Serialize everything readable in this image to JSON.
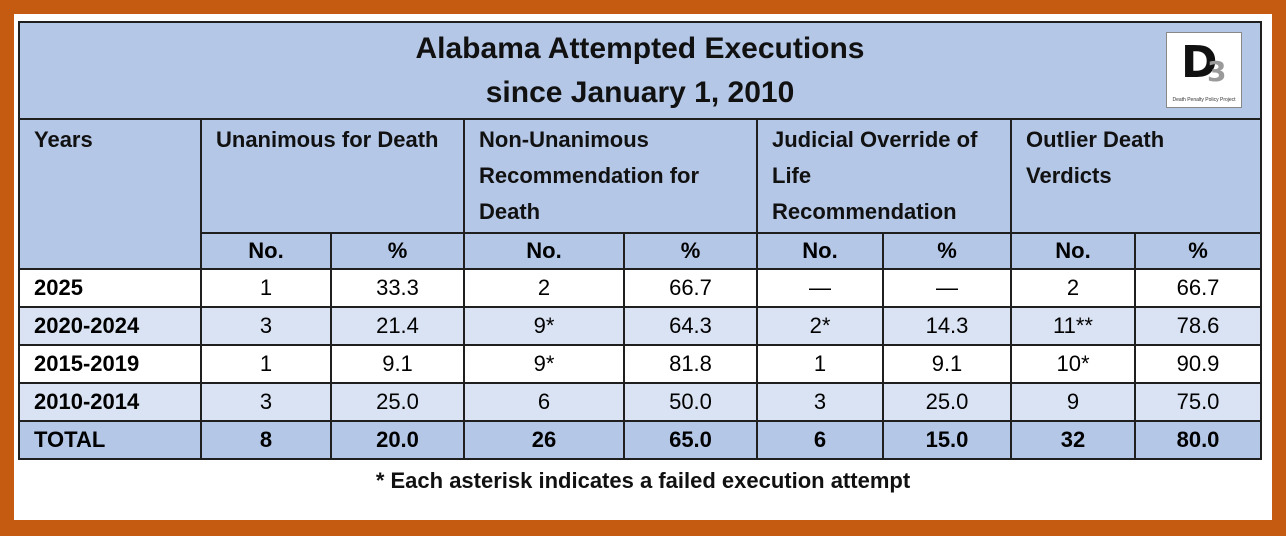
{
  "title": {
    "line1": "Alabama Attempted Executions",
    "line2": "since January 1, 2010"
  },
  "logo": {
    "letter": "D",
    "superscript": "3",
    "caption": "Death Penalty Policy Project"
  },
  "colors": {
    "border_frame": "#c55a11",
    "header_fill": "#b4c7e7",
    "alt_row_fill": "#dae3f3"
  },
  "headers": {
    "years": "Years",
    "groups": [
      "Unanimous for Death",
      "Non-Unanimous Recommendation for Death",
      "Judicial Override of Life Recommendation",
      "Outlier Death Verdicts"
    ],
    "sub": [
      "No.",
      "%"
    ]
  },
  "rows": [
    {
      "year": "2025",
      "cells": [
        "1",
        "33.3",
        "2",
        "66.7",
        "—",
        "—",
        "2",
        "66.7"
      ]
    },
    {
      "year": "2020-2024",
      "cells": [
        "3",
        "21.4",
        "9*",
        "64.3",
        "2*",
        "14.3",
        "11**",
        "78.6"
      ]
    },
    {
      "year": "2015-2019",
      "cells": [
        "1",
        "9.1",
        "9*",
        "81.8",
        "1",
        "9.1",
        "10*",
        "90.9"
      ]
    },
    {
      "year": "2010-2014",
      "cells": [
        "3",
        "25.0",
        "6",
        "50.0",
        "3",
        "25.0",
        "9",
        "75.0"
      ]
    },
    {
      "year": "TOTAL",
      "cells": [
        "8",
        "20.0",
        "26",
        "65.0",
        "6",
        "15.0",
        "32",
        "80.0"
      ]
    }
  ],
  "footnote": "* Each asterisk indicates a failed execution attempt"
}
